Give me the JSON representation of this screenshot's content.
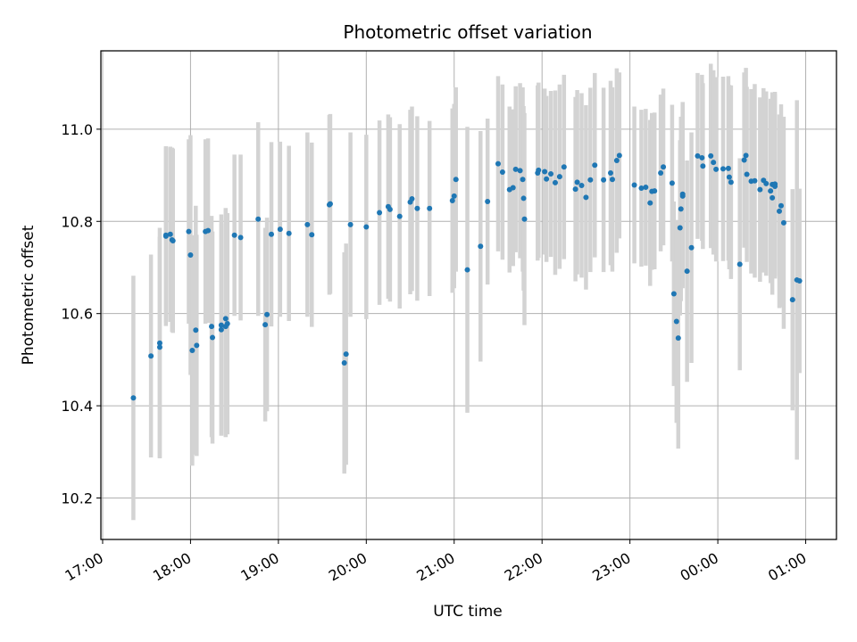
{
  "chart_data": {
    "type": "scatter",
    "title": "Photometric offset variation",
    "xlabel": "UTC time",
    "ylabel": "Photometric offset",
    "x_unit": "hours since 17:00 UTC",
    "xlim": [
      -0.02,
      8.35
    ],
    "ylim": [
      10.11,
      11.17
    ],
    "grid": true,
    "x_ticks": [
      {
        "value": 0,
        "label": "17:00"
      },
      {
        "value": 1,
        "label": "18:00"
      },
      {
        "value": 2,
        "label": "19:00"
      },
      {
        "value": 3,
        "label": "20:00"
      },
      {
        "value": 4,
        "label": "21:00"
      },
      {
        "value": 5,
        "label": "22:00"
      },
      {
        "value": 6,
        "label": "23:00"
      },
      {
        "value": 7,
        "label": "00:00"
      },
      {
        "value": 8,
        "label": "01:00"
      }
    ],
    "y_ticks": [
      {
        "value": 10.2,
        "label": "10.2"
      },
      {
        "value": 10.4,
        "label": "10.4"
      },
      {
        "value": 10.6,
        "label": "10.6"
      },
      {
        "value": 10.8,
        "label": "10.8"
      },
      {
        "value": 11.0,
        "label": "11.0"
      }
    ],
    "colors": {
      "point": "#1f77b4",
      "errorbar": "#d3d3d3",
      "grid": "#b0b0b0"
    },
    "points": [
      [
        0.35,
        10.417,
        0.265
      ],
      [
        0.55,
        10.508,
        0.22
      ],
      [
        0.65,
        10.527,
        0.24
      ],
      [
        0.65,
        10.536,
        0.25
      ],
      [
        0.72,
        10.768,
        0.195
      ],
      [
        0.72,
        10.77,
        0.19
      ],
      [
        0.77,
        10.772,
        0.19
      ],
      [
        0.79,
        10.76,
        0.2
      ],
      [
        0.8,
        10.758,
        0.2
      ],
      [
        0.98,
        10.778,
        0.2
      ],
      [
        1.0,
        10.727,
        0.26
      ],
      [
        1.02,
        10.52,
        0.25
      ],
      [
        1.06,
        10.564,
        0.27
      ],
      [
        1.07,
        10.531,
        0.24
      ],
      [
        1.17,
        10.778,
        0.2
      ],
      [
        1.2,
        10.78,
        0.2
      ],
      [
        1.24,
        10.572,
        0.24
      ],
      [
        1.25,
        10.548,
        0.23
      ],
      [
        1.35,
        10.575,
        0.24
      ],
      [
        1.35,
        10.565,
        0.23
      ],
      [
        1.4,
        10.589,
        0.24
      ],
      [
        1.4,
        10.572,
        0.24
      ],
      [
        1.42,
        10.578,
        0.24
      ],
      [
        1.5,
        10.77,
        0.175
      ],
      [
        1.57,
        10.765,
        0.18
      ],
      [
        1.77,
        10.805,
        0.21
      ],
      [
        1.85,
        10.576,
        0.21
      ],
      [
        1.87,
        10.598,
        0.21
      ],
      [
        1.92,
        10.772,
        0.2
      ],
      [
        2.02,
        10.783,
        0.19
      ],
      [
        2.12,
        10.774,
        0.19
      ],
      [
        2.33,
        10.793,
        0.2
      ],
      [
        2.38,
        10.771,
        0.2
      ],
      [
        2.58,
        10.836,
        0.195
      ],
      [
        2.59,
        10.838,
        0.195
      ],
      [
        2.75,
        10.493,
        0.24
      ],
      [
        2.77,
        10.512,
        0.24
      ],
      [
        2.82,
        10.793,
        0.2
      ],
      [
        3.0,
        10.788,
        0.2
      ],
      [
        3.15,
        10.819,
        0.2
      ],
      [
        3.25,
        10.832,
        0.2
      ],
      [
        3.27,
        10.826,
        0.2
      ],
      [
        3.38,
        10.811,
        0.2
      ],
      [
        3.5,
        10.842,
        0.2
      ],
      [
        3.52,
        10.849,
        0.2
      ],
      [
        3.58,
        10.828,
        0.2
      ],
      [
        3.72,
        10.828,
        0.19
      ],
      [
        3.98,
        10.845,
        0.2
      ],
      [
        4.0,
        10.855,
        0.2
      ],
      [
        4.02,
        10.891,
        0.2
      ],
      [
        4.15,
        10.695,
        0.31
      ],
      [
        4.3,
        10.746,
        0.25
      ],
      [
        4.38,
        10.843,
        0.18
      ],
      [
        4.5,
        10.925,
        0.19
      ],
      [
        4.55,
        10.907,
        0.19
      ],
      [
        4.63,
        10.869,
        0.18
      ],
      [
        4.67,
        10.873,
        0.17
      ],
      [
        4.7,
        10.913,
        0.18
      ],
      [
        4.75,
        10.91,
        0.19
      ],
      [
        4.78,
        10.891,
        0.2
      ],
      [
        4.79,
        10.85,
        0.2
      ],
      [
        4.8,
        10.805,
        0.23
      ],
      [
        4.95,
        10.905,
        0.19
      ],
      [
        4.96,
        10.911,
        0.19
      ],
      [
        5.03,
        10.908,
        0.18
      ],
      [
        5.05,
        10.892,
        0.18
      ],
      [
        5.1,
        10.903,
        0.18
      ],
      [
        5.15,
        10.884,
        0.2
      ],
      [
        5.2,
        10.897,
        0.2
      ],
      [
        5.25,
        10.918,
        0.2
      ],
      [
        5.38,
        10.87,
        0.2
      ],
      [
        5.4,
        10.885,
        0.2
      ],
      [
        5.45,
        10.878,
        0.2
      ],
      [
        5.5,
        10.852,
        0.2
      ],
      [
        5.55,
        10.89,
        0.2
      ],
      [
        5.6,
        10.922,
        0.2
      ],
      [
        5.7,
        10.89,
        0.2
      ],
      [
        5.78,
        10.905,
        0.2
      ],
      [
        5.8,
        10.891,
        0.2
      ],
      [
        5.85,
        10.932,
        0.2
      ],
      [
        5.88,
        10.943,
        0.18
      ],
      [
        6.05,
        10.879,
        0.17
      ],
      [
        6.13,
        10.872,
        0.17
      ],
      [
        6.18,
        10.874,
        0.17
      ],
      [
        6.23,
        10.84,
        0.18
      ],
      [
        6.25,
        10.865,
        0.17
      ],
      [
        6.28,
        10.866,
        0.17
      ],
      [
        6.35,
        10.905,
        0.17
      ],
      [
        6.38,
        10.918,
        0.17
      ],
      [
        6.48,
        10.883,
        0.17
      ],
      [
        6.5,
        10.643,
        0.2
      ],
      [
        6.53,
        10.583,
        0.22
      ],
      [
        6.55,
        10.547,
        0.24
      ],
      [
        6.57,
        10.786,
        0.19
      ],
      [
        6.58,
        10.827,
        0.2
      ],
      [
        6.6,
        10.859,
        0.2
      ],
      [
        6.6,
        10.855,
        0.2
      ],
      [
        6.65,
        10.692,
        0.24
      ],
      [
        6.7,
        10.743,
        0.25
      ],
      [
        6.77,
        10.942,
        0.18
      ],
      [
        6.82,
        10.938,
        0.18
      ],
      [
        6.83,
        10.92,
        0.18
      ],
      [
        6.92,
        10.942,
        0.2
      ],
      [
        6.95,
        10.928,
        0.2
      ],
      [
        6.98,
        10.913,
        0.2
      ],
      [
        7.06,
        10.914,
        0.2
      ],
      [
        7.12,
        10.915,
        0.2
      ],
      [
        7.13,
        10.896,
        0.2
      ],
      [
        7.15,
        10.885,
        0.21
      ],
      [
        7.25,
        10.707,
        0.23
      ],
      [
        7.3,
        10.933,
        0.19
      ],
      [
        7.32,
        10.943,
        0.19
      ],
      [
        7.33,
        10.902,
        0.19
      ],
      [
        7.38,
        10.887,
        0.2
      ],
      [
        7.42,
        10.888,
        0.21
      ],
      [
        7.48,
        10.869,
        0.2
      ],
      [
        7.52,
        10.889,
        0.2
      ],
      [
        7.55,
        10.882,
        0.2
      ],
      [
        7.62,
        10.88,
        0.2
      ],
      [
        7.6,
        10.866,
        0.2
      ],
      [
        7.62,
        10.851,
        0.21
      ],
      [
        7.65,
        10.881,
        0.2
      ],
      [
        7.65,
        10.876,
        0.2
      ],
      [
        7.7,
        10.822,
        0.21
      ],
      [
        7.72,
        10.834,
        0.22
      ],
      [
        7.75,
        10.797,
        0.23
      ],
      [
        7.85,
        10.63,
        0.24
      ],
      [
        7.9,
        10.673,
        0.39
      ],
      [
        7.93,
        10.671,
        0.2
      ]
    ]
  }
}
